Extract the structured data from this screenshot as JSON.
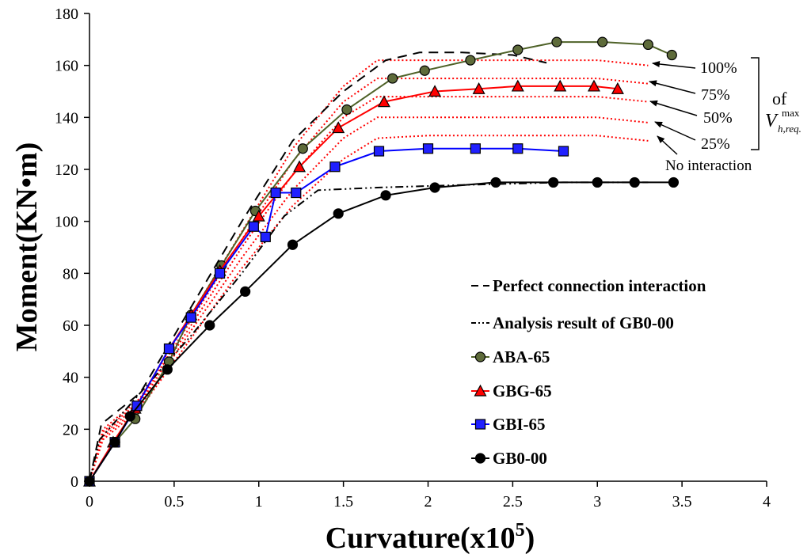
{
  "chart_data": {
    "type": "line",
    "title": "",
    "xlabel": "Curvature(x10",
    "xlabel_sup": "5",
    "xlabel_close": ")",
    "ylabel": "Moment(KN•m)",
    "xlim": [
      0,
      4
    ],
    "ylim": [
      0,
      180
    ],
    "x_ticks": [
      "0",
      "0.5",
      "1",
      "1.5",
      "2",
      "2.5",
      "3",
      "3.5",
      "4"
    ],
    "y_ticks": [
      "0",
      "20",
      "40",
      "60",
      "80",
      "100",
      "120",
      "140",
      "160",
      "180"
    ],
    "grid": false,
    "legend_position": "bottom-right",
    "series": [
      {
        "name": "Perfect connection interaction",
        "style": "dashed",
        "color": "#000000",
        "marker": "none",
        "x": [
          0,
          0.07,
          0.3,
          0.6,
          0.9,
          1.2,
          1.5,
          1.75,
          1.95,
          2.2,
          2.5,
          2.7
        ],
        "y": [
          0,
          22,
          34,
          67,
          100,
          131,
          150,
          162,
          165,
          165,
          164,
          161
        ]
      },
      {
        "name": "Analysis result of GB0-00",
        "style": "dashdotdot",
        "color": "#000000",
        "marker": "none",
        "x": [
          0,
          0.06,
          0.3,
          0.6,
          0.9,
          1.15,
          1.35,
          1.7,
          2.2,
          2.8,
          3.3
        ],
        "y": [
          0,
          16,
          34,
          56,
          80,
          102,
          112,
          113,
          114,
          115,
          115
        ]
      },
      {
        "name": "ABA-65",
        "style": "solid",
        "color": "#4f6228",
        "marker": "circle",
        "marker_fill": "#5e6b3a",
        "x": [
          0,
          0.15,
          0.27,
          0.47,
          0.6,
          0.78,
          0.98,
          1.26,
          1.52,
          1.79,
          1.98,
          2.25,
          2.53,
          2.76,
          3.03,
          3.3,
          3.44
        ],
        "y": [
          0,
          15,
          24,
          46,
          64,
          83,
          104,
          128,
          143,
          155,
          158,
          162,
          166,
          169,
          169,
          168,
          164
        ]
      },
      {
        "name": "GBG-65",
        "style": "solid",
        "color": "#ff0000",
        "marker": "triangle",
        "marker_fill": "#ff0000",
        "x": [
          0,
          0.14,
          0.27,
          0.47,
          0.6,
          0.77,
          1.0,
          1.24,
          1.47,
          1.74,
          2.04,
          2.3,
          2.53,
          2.78,
          2.98,
          3.12
        ],
        "y": [
          0,
          15,
          28,
          51,
          64,
          81,
          102,
          121,
          136,
          146,
          150,
          151,
          152,
          152,
          152,
          151
        ]
      },
      {
        "name": "GBI-65",
        "style": "solid",
        "color": "#0000ff",
        "marker": "square",
        "marker_fill": "#2020ff",
        "x": [
          0,
          0.15,
          0.28,
          0.47,
          0.6,
          0.77,
          0.97,
          1.04,
          1.1,
          1.22,
          1.45,
          1.71,
          2.0,
          2.28,
          2.53,
          2.8
        ],
        "y": [
          0,
          15,
          29,
          51,
          63,
          80,
          98,
          94,
          111,
          111,
          121,
          127,
          128,
          128,
          128,
          127
        ]
      },
      {
        "name": "GB0-00",
        "style": "solid",
        "color": "#000000",
        "marker": "circle",
        "marker_fill": "#000000",
        "x": [
          0,
          0.15,
          0.24,
          0.46,
          0.71,
          0.92,
          1.2,
          1.47,
          1.75,
          2.04,
          2.4,
          2.74,
          3.0,
          3.22,
          3.45
        ],
        "y": [
          0,
          15,
          25,
          43,
          60,
          73,
          91,
          103,
          110,
          113,
          115,
          115,
          115,
          115,
          115
        ]
      }
    ],
    "interaction_curves": {
      "style": "dotted",
      "color": "#ff0000",
      "curves": [
        {
          "label": "100%",
          "x": [
            0,
            0.08,
            0.3,
            0.6,
            0.9,
            1.2,
            1.5,
            1.7,
            2.0,
            2.5,
            3.0,
            3.3
          ],
          "y": [
            0,
            20,
            32,
            64,
            96,
            128,
            152,
            162,
            162,
            162,
            162,
            160
          ]
        },
        {
          "label": "75%",
          "x": [
            0,
            0.08,
            0.3,
            0.6,
            0.9,
            1.2,
            1.5,
            1.7,
            2.0,
            2.5,
            3.0,
            3.3
          ],
          "y": [
            0,
            19,
            31,
            62,
            93,
            123,
            146,
            155,
            155,
            155,
            155,
            153
          ]
        },
        {
          "label": "50%",
          "x": [
            0,
            0.08,
            0.3,
            0.6,
            0.9,
            1.2,
            1.5,
            1.7,
            2.0,
            2.5,
            3.0,
            3.3
          ],
          "y": [
            0,
            18,
            30,
            60,
            90,
            118,
            140,
            148,
            148,
            148,
            148,
            146
          ]
        },
        {
          "label": "25%",
          "x": [
            0,
            0.08,
            0.3,
            0.6,
            0.9,
            1.2,
            1.5,
            1.7,
            2.0,
            2.5,
            3.0,
            3.3
          ],
          "y": [
            0,
            17,
            29,
            58,
            86,
            112,
            132,
            140,
            140,
            140,
            140,
            138
          ]
        },
        {
          "label": "No interaction",
          "x": [
            0,
            0.08,
            0.3,
            0.6,
            0.9,
            1.2,
            1.5,
            1.7,
            2.0,
            2.5,
            3.0,
            3.3
          ],
          "y": [
            0,
            16,
            28,
            55,
            82,
            106,
            124,
            132,
            133,
            133,
            133,
            131
          ]
        }
      ]
    },
    "annotations": {
      "percent_labels": [
        "100%",
        "75%",
        "50%",
        "25%"
      ],
      "no_interaction": "No interaction",
      "of_text": "of",
      "v_symbol": "V",
      "v_sup": "max",
      "v_sub": "h,req."
    }
  }
}
